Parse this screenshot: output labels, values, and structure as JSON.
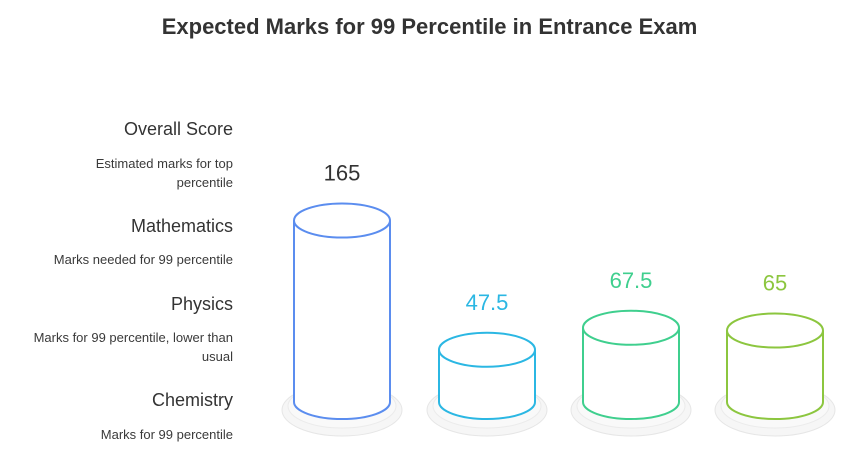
{
  "title": "Expected Marks for 99 Percentile in Entrance Exam",
  "legend": [
    {
      "name": "Overall Score",
      "desc": "Estimated marks for top percentile"
    },
    {
      "name": "Mathematics",
      "desc": "Marks needed for 99 percentile"
    },
    {
      "name": "Physics",
      "desc": "Marks for 99 percentile, lower than usual"
    },
    {
      "name": "Chemistry",
      "desc": "Marks for 99 percentile"
    }
  ],
  "chart_data": {
    "type": "bar",
    "title": "Expected Marks for 99 Percentile in Entrance Exam",
    "categories": [
      "Overall Score",
      "Mathematics",
      "Physics",
      "Chemistry"
    ],
    "values": [
      165,
      47.5,
      67.5,
      65
    ],
    "value_labels": [
      "165",
      "47.5",
      "67.5",
      "65"
    ],
    "colors": [
      "#5b8def",
      "#2bb7e3",
      "#3fcf8e",
      "#8cc63f"
    ],
    "label_colors": [
      "#333333",
      "#2bb7e3",
      "#3fcf8e",
      "#8cc63f"
    ]
  }
}
